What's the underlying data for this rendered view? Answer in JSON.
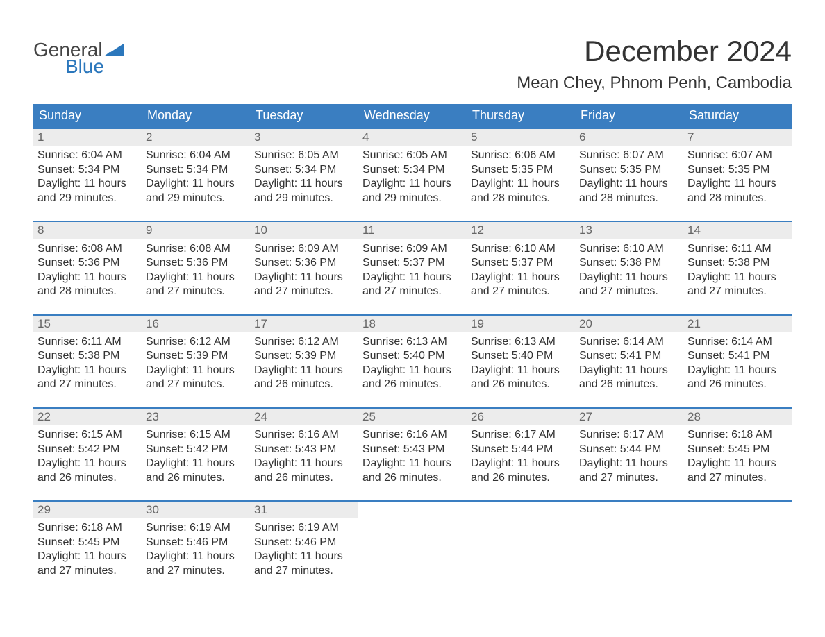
{
  "logo": {
    "general": "General",
    "blue": "Blue"
  },
  "title": {
    "month": "December 2024",
    "location": "Mean Chey, Phnom Penh, Cambodia"
  },
  "colors": {
    "header_bg": "#3a7ec1",
    "header_text": "#ffffff",
    "daynum_bg": "#ececec",
    "daynum_text": "#666666",
    "body_text": "#333333",
    "logo_blue": "#2b77bc",
    "week_border": "#3a7ec1",
    "page_bg": "#ffffff"
  },
  "typography": {
    "month_title_fontsize": 42,
    "location_fontsize": 24,
    "day_header_fontsize": 18,
    "daynum_fontsize": 17,
    "body_fontsize": 16,
    "logo_fontsize": 28
  },
  "day_headers": [
    "Sunday",
    "Monday",
    "Tuesday",
    "Wednesday",
    "Thursday",
    "Friday",
    "Saturday"
  ],
  "weeks": [
    [
      {
        "n": "1",
        "sr": "Sunrise: 6:04 AM",
        "ss": "Sunset: 5:34 PM",
        "dl1": "Daylight: 11 hours",
        "dl2": "and 29 minutes."
      },
      {
        "n": "2",
        "sr": "Sunrise: 6:04 AM",
        "ss": "Sunset: 5:34 PM",
        "dl1": "Daylight: 11 hours",
        "dl2": "and 29 minutes."
      },
      {
        "n": "3",
        "sr": "Sunrise: 6:05 AM",
        "ss": "Sunset: 5:34 PM",
        "dl1": "Daylight: 11 hours",
        "dl2": "and 29 minutes."
      },
      {
        "n": "4",
        "sr": "Sunrise: 6:05 AM",
        "ss": "Sunset: 5:34 PM",
        "dl1": "Daylight: 11 hours",
        "dl2": "and 29 minutes."
      },
      {
        "n": "5",
        "sr": "Sunrise: 6:06 AM",
        "ss": "Sunset: 5:35 PM",
        "dl1": "Daylight: 11 hours",
        "dl2": "and 28 minutes."
      },
      {
        "n": "6",
        "sr": "Sunrise: 6:07 AM",
        "ss": "Sunset: 5:35 PM",
        "dl1": "Daylight: 11 hours",
        "dl2": "and 28 minutes."
      },
      {
        "n": "7",
        "sr": "Sunrise: 6:07 AM",
        "ss": "Sunset: 5:35 PM",
        "dl1": "Daylight: 11 hours",
        "dl2": "and 28 minutes."
      }
    ],
    [
      {
        "n": "8",
        "sr": "Sunrise: 6:08 AM",
        "ss": "Sunset: 5:36 PM",
        "dl1": "Daylight: 11 hours",
        "dl2": "and 28 minutes."
      },
      {
        "n": "9",
        "sr": "Sunrise: 6:08 AM",
        "ss": "Sunset: 5:36 PM",
        "dl1": "Daylight: 11 hours",
        "dl2": "and 27 minutes."
      },
      {
        "n": "10",
        "sr": "Sunrise: 6:09 AM",
        "ss": "Sunset: 5:36 PM",
        "dl1": "Daylight: 11 hours",
        "dl2": "and 27 minutes."
      },
      {
        "n": "11",
        "sr": "Sunrise: 6:09 AM",
        "ss": "Sunset: 5:37 PM",
        "dl1": "Daylight: 11 hours",
        "dl2": "and 27 minutes."
      },
      {
        "n": "12",
        "sr": "Sunrise: 6:10 AM",
        "ss": "Sunset: 5:37 PM",
        "dl1": "Daylight: 11 hours",
        "dl2": "and 27 minutes."
      },
      {
        "n": "13",
        "sr": "Sunrise: 6:10 AM",
        "ss": "Sunset: 5:38 PM",
        "dl1": "Daylight: 11 hours",
        "dl2": "and 27 minutes."
      },
      {
        "n": "14",
        "sr": "Sunrise: 6:11 AM",
        "ss": "Sunset: 5:38 PM",
        "dl1": "Daylight: 11 hours",
        "dl2": "and 27 minutes."
      }
    ],
    [
      {
        "n": "15",
        "sr": "Sunrise: 6:11 AM",
        "ss": "Sunset: 5:38 PM",
        "dl1": "Daylight: 11 hours",
        "dl2": "and 27 minutes."
      },
      {
        "n": "16",
        "sr": "Sunrise: 6:12 AM",
        "ss": "Sunset: 5:39 PM",
        "dl1": "Daylight: 11 hours",
        "dl2": "and 27 minutes."
      },
      {
        "n": "17",
        "sr": "Sunrise: 6:12 AM",
        "ss": "Sunset: 5:39 PM",
        "dl1": "Daylight: 11 hours",
        "dl2": "and 26 minutes."
      },
      {
        "n": "18",
        "sr": "Sunrise: 6:13 AM",
        "ss": "Sunset: 5:40 PM",
        "dl1": "Daylight: 11 hours",
        "dl2": "and 26 minutes."
      },
      {
        "n": "19",
        "sr": "Sunrise: 6:13 AM",
        "ss": "Sunset: 5:40 PM",
        "dl1": "Daylight: 11 hours",
        "dl2": "and 26 minutes."
      },
      {
        "n": "20",
        "sr": "Sunrise: 6:14 AM",
        "ss": "Sunset: 5:41 PM",
        "dl1": "Daylight: 11 hours",
        "dl2": "and 26 minutes."
      },
      {
        "n": "21",
        "sr": "Sunrise: 6:14 AM",
        "ss": "Sunset: 5:41 PM",
        "dl1": "Daylight: 11 hours",
        "dl2": "and 26 minutes."
      }
    ],
    [
      {
        "n": "22",
        "sr": "Sunrise: 6:15 AM",
        "ss": "Sunset: 5:42 PM",
        "dl1": "Daylight: 11 hours",
        "dl2": "and 26 minutes."
      },
      {
        "n": "23",
        "sr": "Sunrise: 6:15 AM",
        "ss": "Sunset: 5:42 PM",
        "dl1": "Daylight: 11 hours",
        "dl2": "and 26 minutes."
      },
      {
        "n": "24",
        "sr": "Sunrise: 6:16 AM",
        "ss": "Sunset: 5:43 PM",
        "dl1": "Daylight: 11 hours",
        "dl2": "and 26 minutes."
      },
      {
        "n": "25",
        "sr": "Sunrise: 6:16 AM",
        "ss": "Sunset: 5:43 PM",
        "dl1": "Daylight: 11 hours",
        "dl2": "and 26 minutes."
      },
      {
        "n": "26",
        "sr": "Sunrise: 6:17 AM",
        "ss": "Sunset: 5:44 PM",
        "dl1": "Daylight: 11 hours",
        "dl2": "and 26 minutes."
      },
      {
        "n": "27",
        "sr": "Sunrise: 6:17 AM",
        "ss": "Sunset: 5:44 PM",
        "dl1": "Daylight: 11 hours",
        "dl2": "and 27 minutes."
      },
      {
        "n": "28",
        "sr": "Sunrise: 6:18 AM",
        "ss": "Sunset: 5:45 PM",
        "dl1": "Daylight: 11 hours",
        "dl2": "and 27 minutes."
      }
    ],
    [
      {
        "n": "29",
        "sr": "Sunrise: 6:18 AM",
        "ss": "Sunset: 5:45 PM",
        "dl1": "Daylight: 11 hours",
        "dl2": "and 27 minutes."
      },
      {
        "n": "30",
        "sr": "Sunrise: 6:19 AM",
        "ss": "Sunset: 5:46 PM",
        "dl1": "Daylight: 11 hours",
        "dl2": "and 27 minutes."
      },
      {
        "n": "31",
        "sr": "Sunrise: 6:19 AM",
        "ss": "Sunset: 5:46 PM",
        "dl1": "Daylight: 11 hours",
        "dl2": "and 27 minutes."
      },
      {
        "n": "",
        "sr": "",
        "ss": "",
        "dl1": "",
        "dl2": ""
      },
      {
        "n": "",
        "sr": "",
        "ss": "",
        "dl1": "",
        "dl2": ""
      },
      {
        "n": "",
        "sr": "",
        "ss": "",
        "dl1": "",
        "dl2": ""
      },
      {
        "n": "",
        "sr": "",
        "ss": "",
        "dl1": "",
        "dl2": ""
      }
    ]
  ]
}
